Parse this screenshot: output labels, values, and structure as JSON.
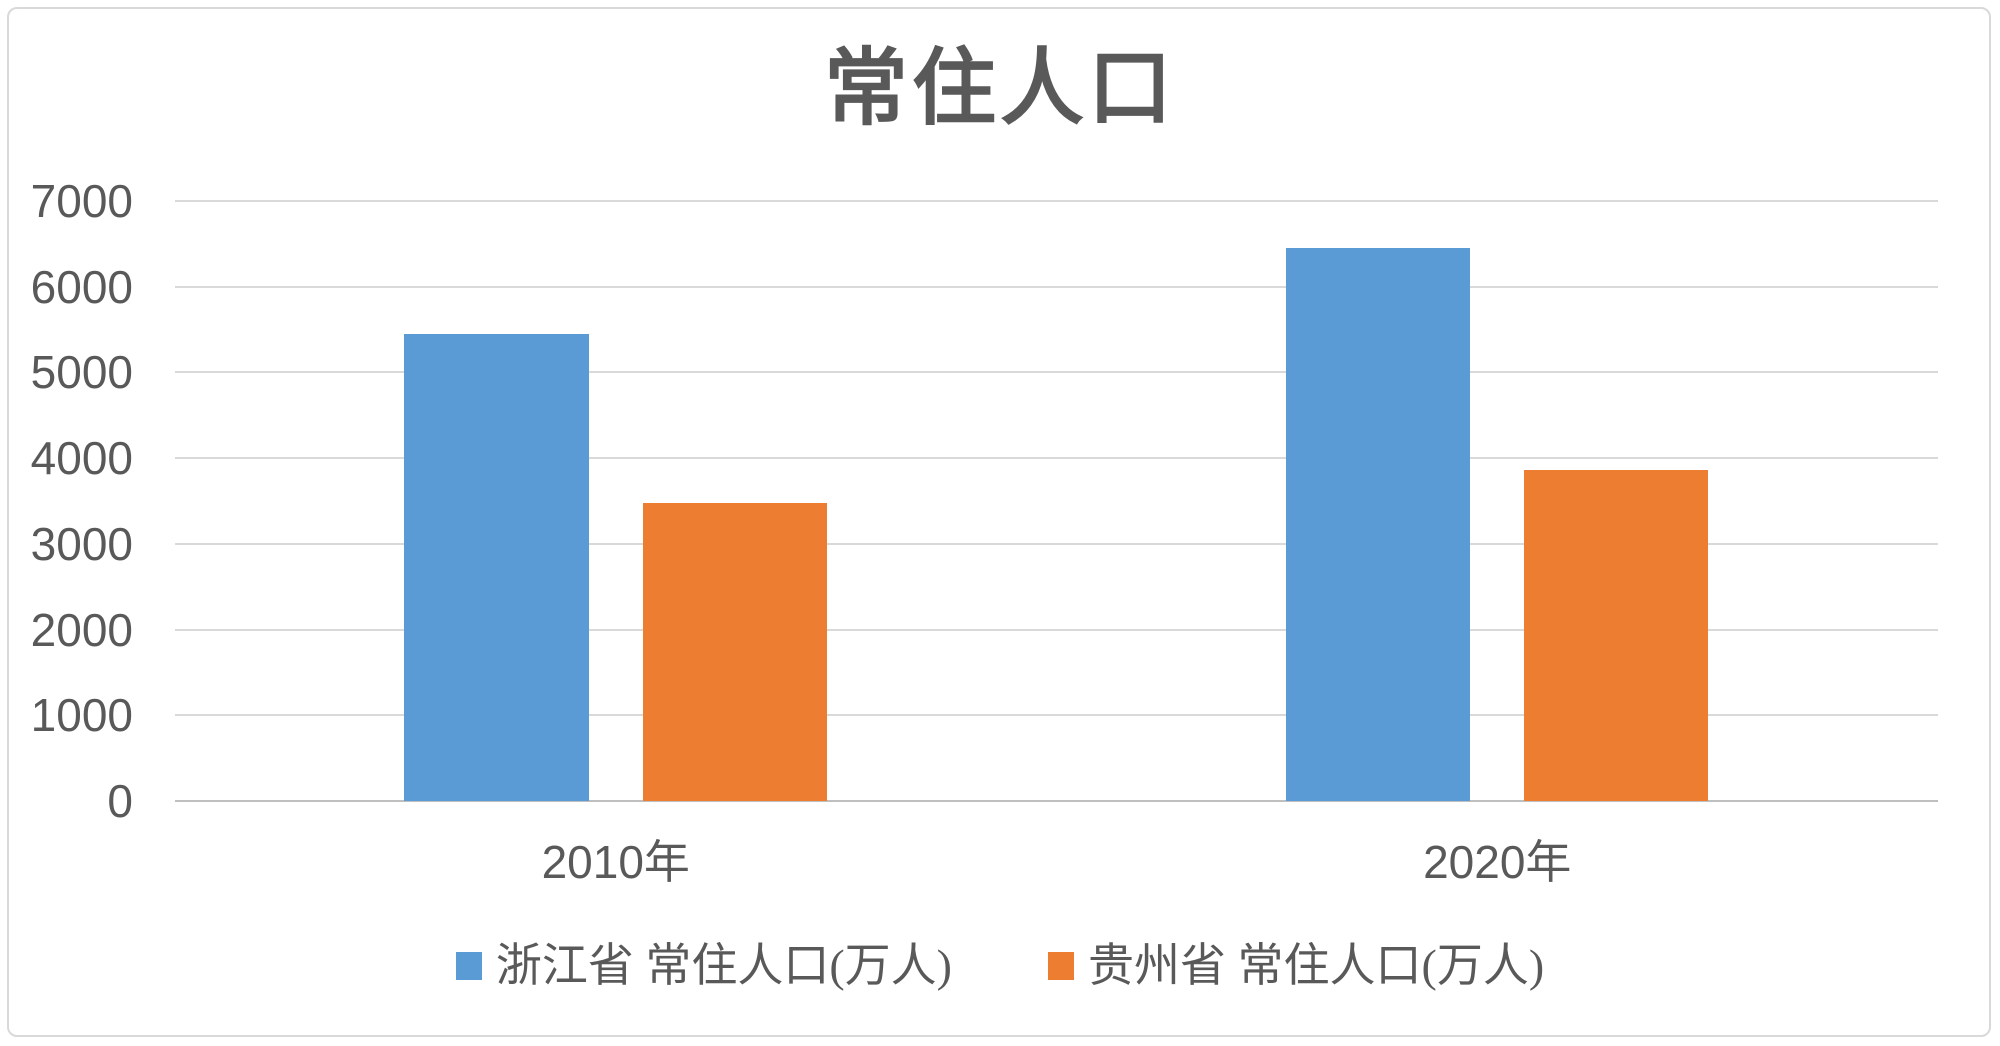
{
  "chart_data": {
    "type": "bar",
    "title": "常住人口",
    "categories": [
      "2010年",
      "2020年"
    ],
    "series": [
      {
        "name": "浙江省 常住人口(万人)",
        "color": "#5B9BD5",
        "values": [
          5443,
          6457
        ]
      },
      {
        "name": "贵州省 常住人口(万人)",
        "color": "#ED7D31",
        "values": [
          3475,
          3856
        ]
      }
    ],
    "ylim": [
      0,
      7000
    ],
    "y_ticks": [
      0,
      1000,
      2000,
      3000,
      4000,
      5000,
      6000,
      7000
    ],
    "xlabel": "",
    "ylabel": "",
    "grid": "horizontal",
    "legend_position": "bottom",
    "colors": {
      "text_gray": "#595959",
      "gridline": "#d9d9d9",
      "axis_line": "#bfbfbf",
      "border": "#d9d9d9",
      "background": "#ffffff"
    }
  }
}
